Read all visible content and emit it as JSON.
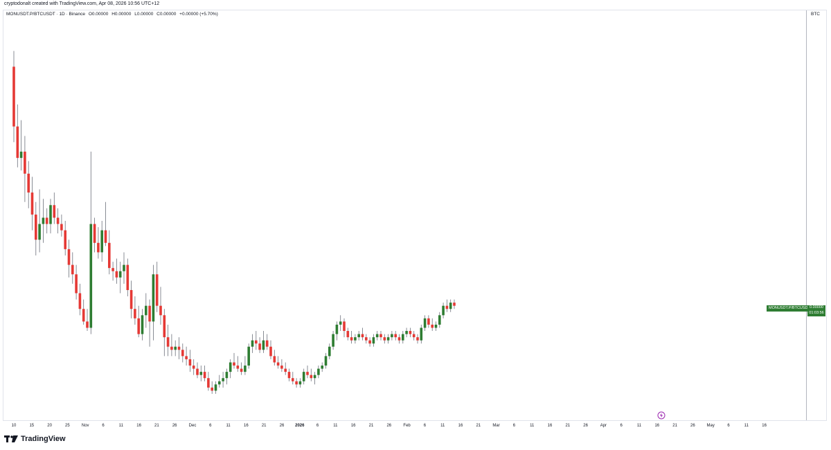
{
  "caption": "cryptodonalt created with TradingView.com, Apr 08, 2026 10:56 UTC+12",
  "legend": {
    "symbol": "MONUSDT.P/BTCUSDT · 1D · Binance",
    "open": "O0.00000",
    "high": "H0.00000",
    "low": "L0.00000",
    "close": "C0.00000",
    "change": "+0.00000 (+5.70%)"
  },
  "price_scale": {
    "title": "BTC",
    "symbol_tag": "MONUSDT.P/BTCUSDT",
    "last_price": "0.00000",
    "countdown": "01:03:56"
  },
  "brand": {
    "name": "TradingView"
  },
  "colors": {
    "up": "#2e7d32",
    "down": "#e53935",
    "wick": "#6b6f7a",
    "grid": "#e0e3eb"
  },
  "icons": {
    "replay": "lightning-icon",
    "logo": "tradingview-logo-icon"
  },
  "chart_data": {
    "type": "candlestick",
    "timeframe": "1D",
    "pair": "MONUSDT.P/BTCUSDT",
    "x_ticks": [
      "10",
      "15",
      "20",
      "25",
      "Nov",
      "6",
      "11",
      "16",
      "21",
      "26",
      "Dec",
      "6",
      "11",
      "16",
      "21",
      "26",
      "2026",
      "6",
      "11",
      "16",
      "21",
      "26",
      "Feb",
      "6",
      "11",
      "16",
      "21",
      "Mar",
      "6",
      "11",
      "16",
      "21",
      "26",
      "Apr",
      "6",
      "11",
      "16",
      "21",
      "26",
      "May",
      "6",
      "11",
      "16"
    ],
    "ohlc_relative": [
      [
        92,
        97,
        68,
        73
      ],
      [
        73,
        80,
        60,
        63
      ],
      [
        63,
        75,
        59,
        65
      ],
      [
        65,
        70,
        49,
        58
      ],
      [
        58,
        62,
        47,
        52
      ],
      [
        52,
        57,
        40,
        45
      ],
      [
        45,
        49,
        32,
        37
      ],
      [
        37,
        53,
        33,
        42
      ],
      [
        42,
        50,
        36,
        44
      ],
      [
        44,
        47,
        39,
        42
      ],
      [
        42,
        50,
        39,
        48
      ],
      [
        48,
        52,
        42,
        44
      ],
      [
        44,
        47,
        39,
        42
      ],
      [
        42,
        45,
        38,
        40
      ],
      [
        40,
        43,
        32,
        34
      ],
      [
        34,
        37,
        25,
        29
      ],
      [
        29,
        33,
        23,
        26
      ],
      [
        26,
        29,
        18,
        20
      ],
      [
        20,
        23,
        13,
        15
      ],
      [
        15,
        18,
        10,
        11
      ],
      [
        11,
        15,
        8,
        9
      ],
      [
        9,
        65,
        7,
        42
      ],
      [
        42,
        44,
        33,
        36
      ],
      [
        36,
        41,
        31,
        33
      ],
      [
        33,
        43,
        30,
        40
      ],
      [
        40,
        49,
        35,
        36
      ],
      [
        36,
        40,
        26,
        28
      ],
      [
        28,
        30,
        24,
        27
      ],
      [
        27,
        31,
        23,
        25
      ],
      [
        25,
        30,
        20,
        27
      ],
      [
        27,
        33,
        23,
        29
      ],
      [
        29,
        31,
        19,
        21
      ],
      [
        21,
        24,
        12,
        15
      ],
      [
        15,
        19,
        10,
        12
      ],
      [
        12,
        16,
        6,
        7
      ],
      [
        7,
        15,
        5,
        13
      ],
      [
        13,
        20,
        9,
        16
      ],
      [
        16,
        18,
        3,
        11
      ],
      [
        11,
        29,
        5,
        26
      ],
      [
        26,
        30,
        14,
        16
      ],
      [
        16,
        22,
        10,
        13
      ],
      [
        13,
        15,
        0,
        6
      ],
      [
        6,
        10,
        0,
        3
      ],
      [
        3,
        7,
        0,
        2
      ],
      [
        2,
        5,
        0,
        3
      ],
      [
        3,
        6,
        -1,
        2
      ],
      [
        2,
        4,
        -2,
        0
      ],
      [
        0,
        3,
        -3,
        -1
      ],
      [
        -1,
        2,
        -5,
        -3
      ],
      [
        -3,
        -1,
        -6,
        -4
      ],
      [
        -4,
        -2,
        -7,
        -6
      ],
      [
        -6,
        -3,
        -8,
        -5
      ],
      [
        -5,
        -3,
        -8,
        -7
      ],
      [
        -7,
        -5,
        -11,
        -10
      ],
      [
        -10,
        -8,
        -12,
        -11
      ],
      [
        -11,
        -8,
        -12,
        -9
      ],
      [
        -9,
        -6,
        -10,
        -8
      ],
      [
        -8,
        -5,
        -10,
        -7
      ],
      [
        -7,
        -4,
        -9,
        -5
      ],
      [
        -5,
        -1,
        -7,
        -2
      ],
      [
        -2,
        1,
        -4,
        -3
      ],
      [
        -3,
        0,
        -5,
        -4
      ],
      [
        -4,
        -2,
        -6,
        -5
      ],
      [
        -5,
        0,
        -6,
        -3
      ],
      [
        -3,
        4,
        -4,
        3
      ],
      [
        3,
        7,
        1,
        5
      ],
      [
        5,
        8,
        2,
        4
      ],
      [
        4,
        6,
        1,
        2
      ],
      [
        2,
        8,
        1,
        5
      ],
      [
        5,
        7,
        2,
        3
      ],
      [
        3,
        5,
        -1,
        0
      ],
      [
        0,
        2,
        -3,
        -2
      ],
      [
        -2,
        0,
        -4,
        -3
      ],
      [
        -3,
        -1,
        -5,
        -4
      ],
      [
        -4,
        -2,
        -6,
        -5
      ],
      [
        -5,
        -4,
        -8,
        -7
      ],
      [
        -7,
        -5,
        -9,
        -8
      ],
      [
        -8,
        -7,
        -10,
        -9
      ],
      [
        -9,
        -7,
        -10,
        -8
      ],
      [
        -8,
        -4,
        -9,
        -5
      ],
      [
        -5,
        -3,
        -7,
        -6
      ],
      [
        -6,
        -4,
        -8,
        -7
      ],
      [
        -7,
        -5,
        -9,
        -6
      ],
      [
        -6,
        -3,
        -7,
        -4
      ],
      [
        -4,
        -2,
        -5,
        -3
      ],
      [
        -3,
        1,
        -4,
        0
      ],
      [
        0,
        4,
        -1,
        3
      ],
      [
        3,
        8,
        2,
        7
      ],
      [
        7,
        11,
        5,
        10
      ],
      [
        10,
        13,
        8,
        11
      ],
      [
        11,
        12,
        6,
        8
      ],
      [
        8,
        9,
        5,
        6
      ],
      [
        6,
        8,
        4,
        5
      ],
      [
        5,
        7,
        4,
        6
      ],
      [
        6,
        8,
        5,
        7
      ],
      [
        7,
        9,
        5,
        6
      ],
      [
        6,
        7,
        4,
        5
      ],
      [
        5,
        6,
        3,
        4
      ],
      [
        4,
        7,
        3,
        6
      ],
      [
        6,
        8,
        5,
        7
      ],
      [
        7,
        8,
        5,
        6
      ],
      [
        6,
        7,
        4,
        5
      ],
      [
        5,
        7,
        4,
        6
      ],
      [
        6,
        8,
        5,
        7
      ],
      [
        7,
        8,
        5,
        6
      ],
      [
        6,
        7,
        4,
        5
      ],
      [
        5,
        8,
        4,
        7
      ],
      [
        7,
        9,
        6,
        8
      ],
      [
        8,
        9,
        6,
        7
      ],
      [
        7,
        8,
        5,
        6
      ],
      [
        6,
        7,
        4,
        5
      ],
      [
        5,
        10,
        4,
        9
      ],
      [
        9,
        13,
        8,
        12
      ],
      [
        12,
        13,
        9,
        10
      ],
      [
        10,
        12,
        8,
        9
      ],
      [
        9,
        11,
        8,
        10
      ],
      [
        10,
        14,
        9,
        13
      ],
      [
        13,
        17,
        12,
        16
      ],
      [
        16,
        18,
        14,
        15
      ],
      [
        15,
        18,
        14,
        17
      ],
      [
        17,
        18,
        15,
        16
      ]
    ],
    "note": "prices display as 0.00000 on the chart"
  }
}
